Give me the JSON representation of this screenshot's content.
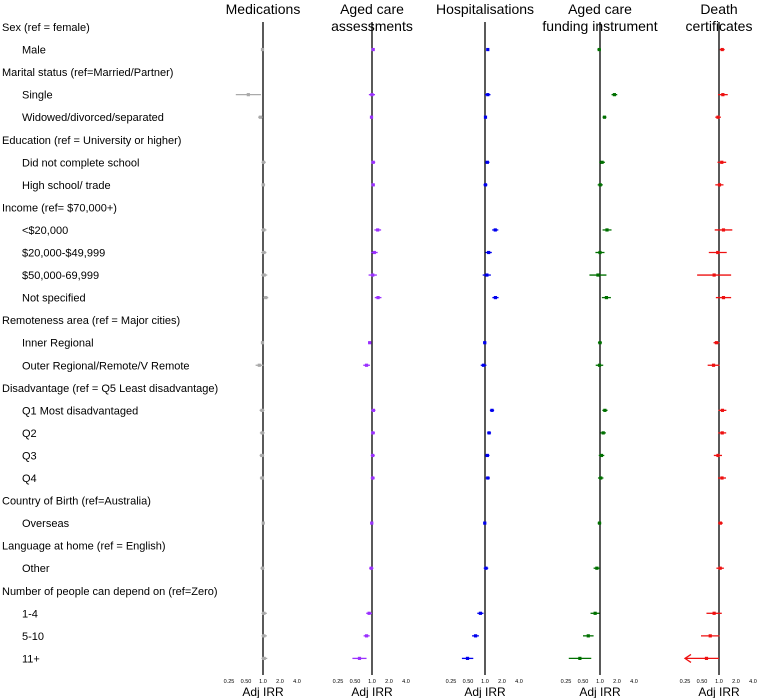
{
  "chart_data": {
    "type": "forest",
    "x_scale": "log2",
    "xlim": [
      0.25,
      4.0
    ],
    "ref_line": 1.0,
    "x_ticks": [
      0.25,
      0.5,
      1.0,
      2.0,
      4.0
    ],
    "x_tick_labels": [
      "0.25",
      "0.50",
      "1.0",
      "2.0",
      "4.0"
    ],
    "xlabel": "Adj IRR",
    "rows": [
      {
        "label": "Sex (ref = female)",
        "header": true
      },
      {
        "label": "Male",
        "header": false
      },
      {
        "label": "Marital status (ref=Married/Partner)",
        "header": true
      },
      {
        "label": "Single",
        "header": false
      },
      {
        "label": "Widowed/divorced/separated",
        "header": false
      },
      {
        "label": "Education (ref = University or higher)",
        "header": true
      },
      {
        "label": "Did not complete school",
        "header": false
      },
      {
        "label": "High school/ trade",
        "header": false
      },
      {
        "label": "Income (ref= $70,000+)",
        "header": true
      },
      {
        "label": "<$20,000",
        "header": false
      },
      {
        "label": "$20,000-$49,999",
        "header": false
      },
      {
        "label": "$50,000-69,999",
        "header": false
      },
      {
        "label": "Not specified",
        "header": false
      },
      {
        "label": "Remoteness area (ref = Major cities)",
        "header": true
      },
      {
        "label": "Inner Regional",
        "header": false
      },
      {
        "label": "Outer Regional/Remote/V Remote",
        "header": false
      },
      {
        "label": "Disadvantage (ref = Q5 Least disadvantage)",
        "header": true
      },
      {
        "label": "Q1 Most disadvantaged",
        "header": false
      },
      {
        "label": "Q2",
        "header": false
      },
      {
        "label": "Q3",
        "header": false
      },
      {
        "label": "Q4",
        "header": false
      },
      {
        "label": "Country of Birth (ref=Australia)",
        "header": true
      },
      {
        "label": "Overseas",
        "header": false
      },
      {
        "label": "Language at home (ref = English)",
        "header": true
      },
      {
        "label": "Other",
        "header": false
      },
      {
        "label": "Number of people can depend on (ref=Zero)",
        "header": true
      },
      {
        "label": "1-4",
        "header": false
      },
      {
        "label": "5-10",
        "header": false
      },
      {
        "label": "11+",
        "header": false
      }
    ],
    "series": [
      {
        "name": "Medications",
        "color": "#aaaaaa",
        "estimates": [
          {
            "row": "Male",
            "irr": 0.98,
            "lo": 0.93,
            "hi": 1.03
          },
          {
            "row": "Single",
            "irr": 0.55,
            "lo": 0.33,
            "hi": 0.92
          },
          {
            "row": "Widowed/divorced/separated",
            "irr": 0.9,
            "lo": 0.82,
            "hi": 0.99
          },
          {
            "row": "Did not complete school",
            "irr": 1.02,
            "lo": 0.94,
            "hi": 1.12
          },
          {
            "row": "High school/ trade",
            "irr": 1.01,
            "lo": 0.94,
            "hi": 1.09
          },
          {
            "row": "<$20,000",
            "irr": 1.03,
            "lo": 0.93,
            "hi": 1.15
          },
          {
            "row": "$20,000-$49,999",
            "irr": 1.04,
            "lo": 0.93,
            "hi": 1.15
          },
          {
            "row": "$50,000-69,999",
            "irr": 1.05,
            "lo": 0.93,
            "hi": 1.19
          },
          {
            "row": "Not specified",
            "irr": 1.12,
            "lo": 1.01,
            "hi": 1.24
          },
          {
            "row": "Inner Regional",
            "irr": 0.98,
            "lo": 0.92,
            "hi": 1.03
          },
          {
            "row": "Outer Regional/Remote/V Remote",
            "irr": 0.86,
            "lo": 0.74,
            "hi": 1.01
          },
          {
            "row": "Q1 Most disadvantaged",
            "irr": 0.96,
            "lo": 0.87,
            "hi": 1.06
          },
          {
            "row": "Q2",
            "irr": 0.97,
            "lo": 0.88,
            "hi": 1.07
          },
          {
            "row": "Q3",
            "irr": 0.95,
            "lo": 0.87,
            "hi": 1.05
          },
          {
            "row": "Q4",
            "irr": 0.96,
            "lo": 0.88,
            "hi": 1.05
          },
          {
            "row": "Overseas",
            "irr": 1.01,
            "lo": 0.96,
            "hi": 1.07
          },
          {
            "row": "Other",
            "irr": 0.98,
            "lo": 0.9,
            "hi": 1.06
          },
          {
            "row": "1-4",
            "irr": 1.04,
            "lo": 0.94,
            "hi": 1.17
          },
          {
            "row": "5-10",
            "irr": 1.04,
            "lo": 0.94,
            "hi": 1.17
          },
          {
            "row": "11+",
            "irr": 1.05,
            "lo": 0.94,
            "hi": 1.19
          }
        ]
      },
      {
        "name": "Aged care assessments",
        "color": "#9b30ff",
        "estimates": [
          {
            "row": "Male",
            "irr": 1.05,
            "lo": 0.99,
            "hi": 1.11
          },
          {
            "row": "Single",
            "irr": 1.0,
            "lo": 0.88,
            "hi": 1.13
          },
          {
            "row": "Widowed/divorced/separated",
            "irr": 0.98,
            "lo": 0.92,
            "hi": 1.04
          },
          {
            "row": "Did not complete school",
            "irr": 1.05,
            "lo": 0.97,
            "hi": 1.14
          },
          {
            "row": "High school/ trade",
            "irr": 1.05,
            "lo": 0.97,
            "hi": 1.12
          },
          {
            "row": "<$20,000",
            "irr": 1.26,
            "lo": 1.1,
            "hi": 1.45
          },
          {
            "row": "$20,000-$49,999",
            "irr": 1.1,
            "lo": 0.96,
            "hi": 1.26
          },
          {
            "row": "$50,000-69,999",
            "irr": 1.03,
            "lo": 0.87,
            "hi": 1.22
          },
          {
            "row": "Not specified",
            "irr": 1.28,
            "lo": 1.12,
            "hi": 1.47
          },
          {
            "row": "Inner Regional",
            "irr": 0.91,
            "lo": 0.85,
            "hi": 0.97
          },
          {
            "row": "Outer Regional/Remote/V Remote",
            "irr": 0.8,
            "lo": 0.7,
            "hi": 0.92
          },
          {
            "row": "Q1 Most disadvantaged",
            "irr": 1.06,
            "lo": 0.97,
            "hi": 1.15
          },
          {
            "row": "Q2",
            "irr": 1.04,
            "lo": 0.96,
            "hi": 1.13
          },
          {
            "row": "Q3",
            "irr": 1.03,
            "lo": 0.95,
            "hi": 1.12
          },
          {
            "row": "Q4",
            "irr": 1.03,
            "lo": 0.95,
            "hi": 1.12
          },
          {
            "row": "Overseas",
            "irr": 0.99,
            "lo": 0.94,
            "hi": 1.05
          },
          {
            "row": "Other",
            "irr": 0.97,
            "lo": 0.89,
            "hi": 1.06
          },
          {
            "row": "1-4",
            "irr": 0.89,
            "lo": 0.79,
            "hi": 1.0
          },
          {
            "row": "5-10",
            "irr": 0.8,
            "lo": 0.71,
            "hi": 0.91
          },
          {
            "row": "11+",
            "irr": 0.6,
            "lo": 0.45,
            "hi": 0.8
          }
        ]
      },
      {
        "name": "Hospitalisations",
        "color": "#0000ee",
        "estimates": [
          {
            "row": "Male",
            "irr": 1.12,
            "lo": 1.06,
            "hi": 1.18
          },
          {
            "row": "Single",
            "irr": 1.12,
            "lo": 1.0,
            "hi": 1.25
          },
          {
            "row": "Widowed/divorced/separated",
            "irr": 1.02,
            "lo": 0.96,
            "hi": 1.08
          },
          {
            "row": "Did not complete school",
            "irr": 1.1,
            "lo": 1.01,
            "hi": 1.2
          },
          {
            "row": "High school/ trade",
            "irr": 1.02,
            "lo": 0.94,
            "hi": 1.1
          },
          {
            "row": "<$20,000",
            "irr": 1.52,
            "lo": 1.34,
            "hi": 1.72
          },
          {
            "row": "$20,000-$49,999",
            "irr": 1.16,
            "lo": 1.02,
            "hi": 1.32
          },
          {
            "row": "$50,000-69,999",
            "irr": 1.08,
            "lo": 0.91,
            "hi": 1.27
          },
          {
            "row": "Not specified",
            "irr": 1.53,
            "lo": 1.35,
            "hi": 1.74
          },
          {
            "row": "Inner Regional",
            "irr": 0.99,
            "lo": 0.93,
            "hi": 1.05
          },
          {
            "row": "Outer Regional/Remote/V Remote",
            "irr": 0.94,
            "lo": 0.84,
            "hi": 1.06
          },
          {
            "row": "Q1 Most disadvantaged",
            "irr": 1.33,
            "lo": 1.22,
            "hi": 1.45
          },
          {
            "row": "Q2",
            "irr": 1.18,
            "lo": 1.09,
            "hi": 1.28
          },
          {
            "row": "Q3",
            "irr": 1.1,
            "lo": 1.01,
            "hi": 1.2
          },
          {
            "row": "Q4",
            "irr": 1.12,
            "lo": 1.03,
            "hi": 1.22
          },
          {
            "row": "Overseas",
            "irr": 0.99,
            "lo": 0.94,
            "hi": 1.05
          },
          {
            "row": "Other",
            "irr": 1.04,
            "lo": 0.95,
            "hi": 1.14
          },
          {
            "row": "1-4",
            "irr": 0.83,
            "lo": 0.73,
            "hi": 0.94
          },
          {
            "row": "5-10",
            "irr": 0.68,
            "lo": 0.59,
            "hi": 0.78
          },
          {
            "row": "11+",
            "irr": 0.49,
            "lo": 0.39,
            "hi": 0.62
          }
        ]
      },
      {
        "name": "Aged care funding instrument",
        "color": "#007000",
        "estimates": [
          {
            "row": "Male",
            "irr": 0.97,
            "lo": 0.9,
            "hi": 1.04
          },
          {
            "row": "Single",
            "irr": 1.8,
            "lo": 1.6,
            "hi": 2.02
          },
          {
            "row": "Widowed/divorced/separated",
            "irr": 1.2,
            "lo": 1.11,
            "hi": 1.3
          },
          {
            "row": "Did not complete school",
            "irr": 1.09,
            "lo": 0.97,
            "hi": 1.22
          },
          {
            "row": "High school/ trade",
            "irr": 1.01,
            "lo": 0.91,
            "hi": 1.12
          },
          {
            "row": "<$20,000",
            "irr": 1.33,
            "lo": 1.11,
            "hi": 1.6
          },
          {
            "row": "$20,000-$49,999",
            "irr": 1.0,
            "lo": 0.83,
            "hi": 1.2
          },
          {
            "row": "$50,000-69,999",
            "irr": 0.92,
            "lo": 0.65,
            "hi": 1.3
          },
          {
            "row": "Not specified",
            "irr": 1.3,
            "lo": 1.08,
            "hi": 1.56
          },
          {
            "row": "Inner Regional",
            "irr": 1.0,
            "lo": 0.92,
            "hi": 1.08
          },
          {
            "row": "Outer Regional/Remote/V Remote",
            "irr": 0.98,
            "lo": 0.84,
            "hi": 1.14
          },
          {
            "row": "Q1 Most disadvantaged",
            "irr": 1.22,
            "lo": 1.1,
            "hi": 1.36
          },
          {
            "row": "Q2",
            "irr": 1.14,
            "lo": 1.02,
            "hi": 1.27
          },
          {
            "row": "Q3",
            "irr": 1.06,
            "lo": 0.95,
            "hi": 1.19
          },
          {
            "row": "Q4",
            "irr": 1.03,
            "lo": 0.92,
            "hi": 1.15
          },
          {
            "row": "Overseas",
            "irr": 0.98,
            "lo": 0.91,
            "hi": 1.05
          },
          {
            "row": "Other",
            "irr": 0.88,
            "lo": 0.77,
            "hi": 1.0
          },
          {
            "row": "1-4",
            "irr": 0.82,
            "lo": 0.68,
            "hi": 0.98
          },
          {
            "row": "5-10",
            "irr": 0.62,
            "lo": 0.5,
            "hi": 0.77
          },
          {
            "row": "11+",
            "irr": 0.44,
            "lo": 0.28,
            "hi": 0.7
          }
        ]
      },
      {
        "name": "Death certificates",
        "color": "#ee1111",
        "estimates": [
          {
            "row": "Male",
            "irr": 1.14,
            "lo": 1.03,
            "hi": 1.26
          },
          {
            "row": "Single",
            "irr": 1.17,
            "lo": 0.96,
            "hi": 1.43
          },
          {
            "row": "Widowed/divorced/separated",
            "irr": 0.96,
            "lo": 0.86,
            "hi": 1.08
          },
          {
            "row": "Did not complete school",
            "irr": 1.12,
            "lo": 0.94,
            "hi": 1.34
          },
          {
            "row": "High school/ trade",
            "irr": 1.02,
            "lo": 0.86,
            "hi": 1.2
          },
          {
            "row": "<$20,000",
            "irr": 1.2,
            "lo": 0.84,
            "hi": 1.72
          },
          {
            "row": "$20,000-$49,999",
            "irr": 0.95,
            "lo": 0.66,
            "hi": 1.37
          },
          {
            "row": "$50,000-69,999",
            "irr": 0.82,
            "lo": 0.41,
            "hi": 1.64
          },
          {
            "row": "Not specified",
            "irr": 1.2,
            "lo": 0.88,
            "hi": 1.64
          },
          {
            "row": "Inner Regional",
            "irr": 0.9,
            "lo": 0.8,
            "hi": 1.02
          },
          {
            "row": "Outer Regional/Remote/V Remote",
            "irr": 0.8,
            "lo": 0.63,
            "hi": 1.02
          },
          {
            "row": "Q1 Most disadvantaged",
            "irr": 1.15,
            "lo": 0.98,
            "hi": 1.35
          },
          {
            "row": "Q2",
            "irr": 1.14,
            "lo": 0.97,
            "hi": 1.34
          },
          {
            "row": "Q3",
            "irr": 0.96,
            "lo": 0.81,
            "hi": 1.13
          },
          {
            "row": "Q4",
            "irr": 1.13,
            "lo": 0.96,
            "hi": 1.33
          },
          {
            "row": "Overseas",
            "irr": 1.06,
            "lo": 0.96,
            "hi": 1.17
          },
          {
            "row": "Other",
            "irr": 1.05,
            "lo": 0.9,
            "hi": 1.22
          },
          {
            "row": "1-4",
            "irr": 0.82,
            "lo": 0.6,
            "hi": 1.12
          },
          {
            "row": "5-10",
            "irr": 0.7,
            "lo": 0.48,
            "hi": 1.02
          },
          {
            "row": "11+",
            "irr": 0.6,
            "lo": 0.25,
            "hi": 1.0,
            "lo_truncated": true
          }
        ]
      }
    ],
    "panel_titles": [
      {
        "lines": [
          "Medications"
        ]
      },
      {
        "lines": [
          "Aged care",
          "assessments"
        ]
      },
      {
        "lines": [
          "Hospitalisations"
        ]
      },
      {
        "lines": [
          "Aged care",
          "funding instrument"
        ]
      },
      {
        "lines": [
          "Death",
          "certificates"
        ]
      }
    ]
  }
}
